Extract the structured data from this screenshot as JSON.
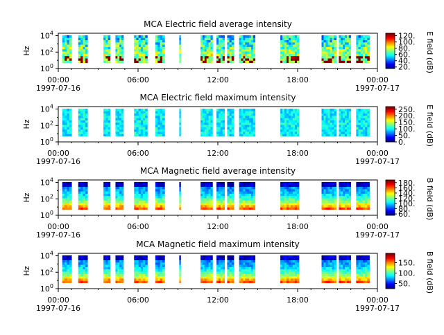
{
  "chart_data": [
    {
      "type": "heatmap",
      "title": "MCA  Electric field average intensity",
      "ylabel": "Hz",
      "y_ticks": [
        "10^0",
        "10^2",
        "10^4"
      ],
      "y_scale": "log",
      "ylim_hz": [
        1,
        20000
      ],
      "x_ticks": [
        "00:00",
        "06:00",
        "12:00",
        "18:00",
        "00:00"
      ],
      "x_tick_hours": [
        0,
        6,
        12,
        18,
        24
      ],
      "date_start": "1997-07-16",
      "date_end": "1997-07-17",
      "colorbar_label": "E field (dB)",
      "colorbar_ticks": [
        "20.",
        "40.",
        "60.",
        "80.",
        "100.",
        "120."
      ],
      "colorbar_tick_values": [
        20,
        40,
        60,
        80,
        100,
        120
      ],
      "clim": [
        15,
        128
      ],
      "style": "low"
    },
    {
      "type": "heatmap",
      "title": "MCA  Electric field maximum intensity",
      "ylabel": "Hz",
      "y_ticks": [
        "10^0",
        "10^2",
        "10^4"
      ],
      "y_scale": "log",
      "ylim_hz": [
        1,
        20000
      ],
      "x_ticks": [
        "00:00",
        "06:00",
        "12:00",
        "18:00",
        "00:00"
      ],
      "x_tick_hours": [
        0,
        6,
        12,
        18,
        24
      ],
      "date_start": "1997-07-16",
      "date_end": "1997-07-17",
      "colorbar_label": "E field (dB)",
      "colorbar_ticks": [
        "0.",
        "50.",
        "100.",
        "150.",
        "200.",
        "250."
      ],
      "colorbar_tick_values": [
        0,
        50,
        100,
        150,
        200,
        250
      ],
      "clim": [
        0,
        270
      ],
      "style": "flat"
    },
    {
      "type": "heatmap",
      "title": "MCA  Magnetic field average intensity",
      "ylabel": "Hz",
      "y_ticks": [
        "10^0",
        "10^2",
        "10^4"
      ],
      "y_scale": "log",
      "ylim_hz": [
        1,
        20000
      ],
      "x_ticks": [
        "00:00",
        "06:00",
        "12:00",
        "18:00",
        "00:00"
      ],
      "x_tick_hours": [
        0,
        6,
        12,
        18,
        24
      ],
      "date_start": "1997-07-16",
      "date_end": "1997-07-17",
      "colorbar_label": "B field (dB)",
      "colorbar_ticks": [
        "60.",
        "80.",
        "100.",
        "120.",
        "140.",
        "160.",
        "180."
      ],
      "colorbar_tick_values": [
        60,
        80,
        100,
        120,
        140,
        160,
        180
      ],
      "clim": [
        55,
        190
      ],
      "style": "magnetic"
    },
    {
      "type": "heatmap",
      "title": "MCA  Magnetic field maximum intensity",
      "ylabel": "Hz",
      "y_ticks": [
        "10^0",
        "10^2",
        "10^4"
      ],
      "y_scale": "log",
      "ylim_hz": [
        1,
        20000
      ],
      "x_ticks": [
        "00:00",
        "06:00",
        "12:00",
        "18:00",
        "00:00"
      ],
      "x_tick_hours": [
        0,
        6,
        12,
        18,
        24
      ],
      "date_start": "1997-07-16",
      "date_end": "1997-07-17",
      "colorbar_label": "B field (dB)",
      "colorbar_ticks": [
        "50.",
        "100.",
        "150."
      ],
      "colorbar_tick_values": [
        50,
        100,
        150
      ],
      "clim": [
        25,
        195
      ],
      "style": "magnetic"
    }
  ],
  "data_segments_hours": [
    [
      0.3,
      1.0
    ],
    [
      1.5,
      2.2
    ],
    [
      3.4,
      3.9
    ],
    [
      4.3,
      4.9
    ],
    [
      5.7,
      6.7
    ],
    [
      7.3,
      8.0
    ],
    [
      9.1,
      9.2
    ],
    [
      10.7,
      11.6
    ],
    [
      11.9,
      12.5
    ],
    [
      12.7,
      13.2
    ],
    [
      13.6,
      14.8
    ],
    [
      16.7,
      18.1
    ],
    [
      19.8,
      20.9
    ],
    [
      21.1,
      22.0
    ],
    [
      22.4,
      23.4
    ]
  ],
  "colors": {
    "background": "#ffffff",
    "axis": "#000000"
  }
}
